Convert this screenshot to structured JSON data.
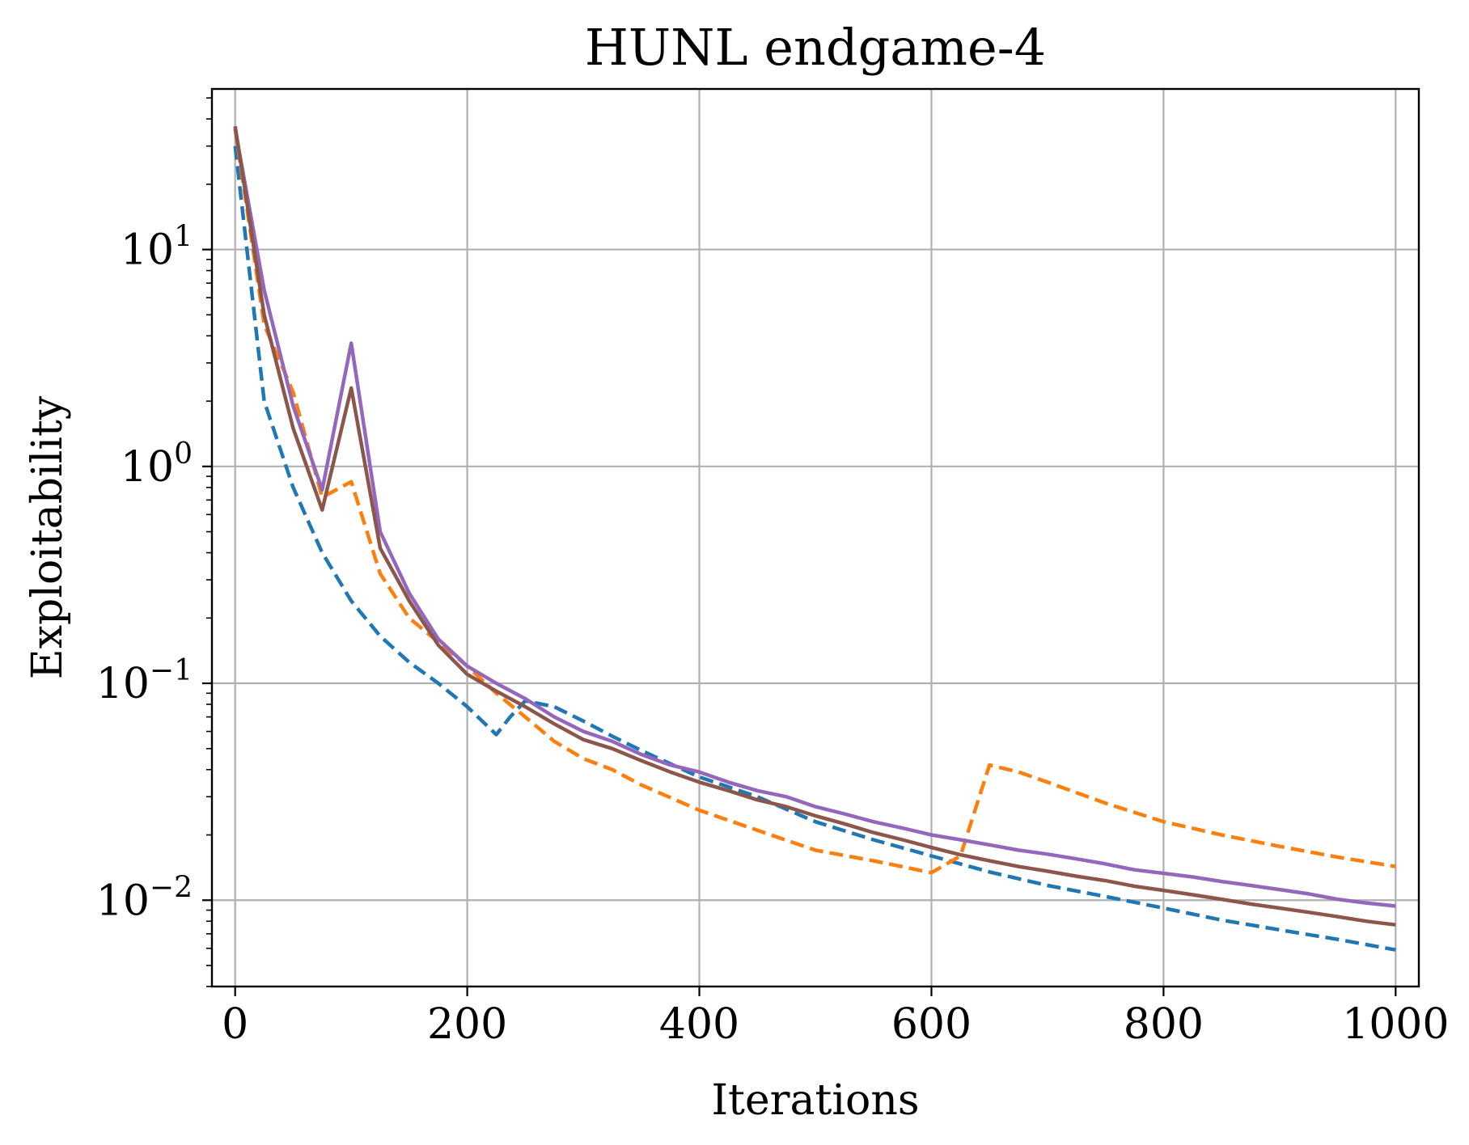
{
  "chart_data": {
    "type": "line",
    "title": "HUNL endgame-4",
    "xlabel": "Iterations",
    "ylabel": "Exploitability",
    "xlim": [
      -20,
      1020
    ],
    "ylim": [
      0.004,
      55
    ],
    "yscale": "log",
    "grid": true,
    "legend": "none",
    "x_ticks": [
      0,
      200,
      400,
      600,
      800,
      1000
    ],
    "x_tick_labels": [
      "0",
      "200",
      "400",
      "600",
      "800",
      "1000"
    ],
    "y_ticks": [
      {
        "value": 10,
        "base": "10",
        "exp": "1"
      },
      {
        "value": 1,
        "base": "10",
        "exp": "0"
      },
      {
        "value": 0.1,
        "base": "10",
        "exp": "−1"
      },
      {
        "value": 0.01,
        "base": "10",
        "exp": "−2"
      }
    ],
    "series": [
      {
        "color": "#1f77b4",
        "style": "dashed",
        "points": [
          [
            0,
            30
          ],
          [
            25,
            2.0
          ],
          [
            50,
            0.8
          ],
          [
            75,
            0.4
          ],
          [
            100,
            0.24
          ],
          [
            125,
            0.165
          ],
          [
            150,
            0.125
          ],
          [
            175,
            0.1
          ],
          [
            200,
            0.078
          ],
          [
            225,
            0.058
          ],
          [
            237,
            0.07
          ],
          [
            250,
            0.083
          ],
          [
            275,
            0.078
          ],
          [
            300,
            0.067
          ],
          [
            325,
            0.057
          ],
          [
            350,
            0.049
          ],
          [
            400,
            0.037
          ],
          [
            450,
            0.03
          ],
          [
            500,
            0.023
          ],
          [
            550,
            0.019
          ],
          [
            600,
            0.016
          ],
          [
            650,
            0.0135
          ],
          [
            700,
            0.0117
          ],
          [
            750,
            0.0104
          ],
          [
            800,
            0.0092
          ],
          [
            850,
            0.0081
          ],
          [
            900,
            0.0073
          ],
          [
            950,
            0.0066
          ],
          [
            1000,
            0.0059
          ]
        ]
      },
      {
        "color": "#ff7f0e",
        "style": "dashed",
        "points": [
          [
            0,
            36
          ],
          [
            25,
            4.5
          ],
          [
            50,
            2.2
          ],
          [
            75,
            0.72
          ],
          [
            100,
            0.85
          ],
          [
            125,
            0.32
          ],
          [
            150,
            0.2
          ],
          [
            175,
            0.155
          ],
          [
            200,
            0.12
          ],
          [
            225,
            0.09
          ],
          [
            250,
            0.07
          ],
          [
            275,
            0.054
          ],
          [
            300,
            0.045
          ],
          [
            325,
            0.04
          ],
          [
            350,
            0.034
          ],
          [
            400,
            0.026
          ],
          [
            450,
            0.021
          ],
          [
            500,
            0.017
          ],
          [
            550,
            0.0152
          ],
          [
            600,
            0.0134
          ],
          [
            625,
            0.016
          ],
          [
            650,
            0.042
          ],
          [
            675,
            0.039
          ],
          [
            700,
            0.035
          ],
          [
            750,
            0.028
          ],
          [
            800,
            0.023
          ],
          [
            850,
            0.02
          ],
          [
            900,
            0.0177
          ],
          [
            950,
            0.0158
          ],
          [
            1000,
            0.0143
          ]
        ]
      },
      {
        "color": "#9467bd",
        "style": "solid",
        "points": [
          [
            0,
            36
          ],
          [
            25,
            6.5
          ],
          [
            50,
            1.9
          ],
          [
            75,
            0.78
          ],
          [
            100,
            3.7
          ],
          [
            125,
            0.5
          ],
          [
            150,
            0.26
          ],
          [
            175,
            0.16
          ],
          [
            200,
            0.12
          ],
          [
            225,
            0.1
          ],
          [
            250,
            0.085
          ],
          [
            275,
            0.07
          ],
          [
            300,
            0.06
          ],
          [
            325,
            0.054
          ],
          [
            350,
            0.047
          ],
          [
            375,
            0.042
          ],
          [
            400,
            0.039
          ],
          [
            425,
            0.035
          ],
          [
            450,
            0.032
          ],
          [
            475,
            0.03
          ],
          [
            500,
            0.027
          ],
          [
            525,
            0.025
          ],
          [
            550,
            0.023
          ],
          [
            575,
            0.0215
          ],
          [
            600,
            0.02
          ],
          [
            625,
            0.019
          ],
          [
            650,
            0.018
          ],
          [
            675,
            0.017
          ],
          [
            700,
            0.0163
          ],
          [
            725,
            0.0155
          ],
          [
            750,
            0.0147
          ],
          [
            775,
            0.0138
          ],
          [
            800,
            0.0133
          ],
          [
            825,
            0.0128
          ],
          [
            850,
            0.0122
          ],
          [
            875,
            0.0117
          ],
          [
            900,
            0.0112
          ],
          [
            925,
            0.0107
          ],
          [
            950,
            0.0101
          ],
          [
            975,
            0.0097
          ],
          [
            1000,
            0.0094
          ]
        ]
      },
      {
        "color": "#8c564b",
        "style": "solid",
        "points": [
          [
            0,
            37
          ],
          [
            25,
            5.0
          ],
          [
            50,
            1.5
          ],
          [
            75,
            0.63
          ],
          [
            100,
            2.3
          ],
          [
            125,
            0.42
          ],
          [
            150,
            0.24
          ],
          [
            175,
            0.15
          ],
          [
            200,
            0.11
          ],
          [
            225,
            0.092
          ],
          [
            250,
            0.078
          ],
          [
            275,
            0.065
          ],
          [
            300,
            0.055
          ],
          [
            325,
            0.05
          ],
          [
            350,
            0.044
          ],
          [
            375,
            0.039
          ],
          [
            400,
            0.035
          ],
          [
            425,
            0.032
          ],
          [
            450,
            0.029
          ],
          [
            475,
            0.027
          ],
          [
            500,
            0.0245
          ],
          [
            525,
            0.0225
          ],
          [
            550,
            0.0205
          ],
          [
            575,
            0.019
          ],
          [
            600,
            0.0175
          ],
          [
            625,
            0.0162
          ],
          [
            650,
            0.0152
          ],
          [
            675,
            0.0143
          ],
          [
            700,
            0.0136
          ],
          [
            725,
            0.0129
          ],
          [
            750,
            0.0123
          ],
          [
            775,
            0.0116
          ],
          [
            800,
            0.0111
          ],
          [
            825,
            0.0106
          ],
          [
            850,
            0.0101
          ],
          [
            875,
            0.0096
          ],
          [
            900,
            0.0092
          ],
          [
            925,
            0.0088
          ],
          [
            950,
            0.0084
          ],
          [
            975,
            0.008
          ],
          [
            1000,
            0.0077
          ]
        ]
      }
    ]
  }
}
